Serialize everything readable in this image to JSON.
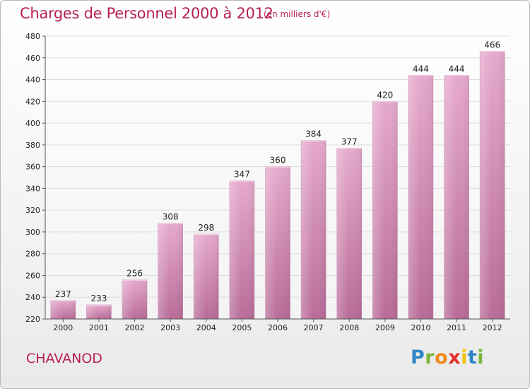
{
  "title": "Charges de Personnel 2000 à 2012",
  "subtitle": "(en milliers d'€)",
  "city": "CHAVANOD",
  "logo": {
    "letters": [
      "P",
      "r",
      "o",
      "x",
      "i",
      "t",
      "i"
    ],
    "colors": [
      "#2f86c8",
      "#7bb63a",
      "#f08a1e",
      "#e2312d",
      "#f4c20d",
      "#2f86c8",
      "#7bb63a"
    ]
  },
  "colors": {
    "bar": "#d88fb8",
    "bar_dark": "#b86c98",
    "title": "#b81f55",
    "grid": "#dddddd"
  },
  "chart_data": {
    "type": "bar",
    "title": "Charges de Personnel 2000 à 2012",
    "subtitle": "(en milliers d'€)",
    "categories": [
      "2000",
      "2001",
      "2002",
      "2003",
      "2004",
      "2005",
      "2006",
      "2007",
      "2008",
      "2009",
      "2010",
      "2011",
      "2012"
    ],
    "values": [
      237,
      233,
      256,
      308,
      298,
      347,
      360,
      384,
      377,
      420,
      444,
      444,
      466
    ],
    "ylim": [
      220,
      480
    ],
    "yticks": [
      220,
      240,
      260,
      280,
      300,
      320,
      340,
      360,
      380,
      400,
      420,
      440,
      460,
      480
    ],
    "grid": true
  }
}
